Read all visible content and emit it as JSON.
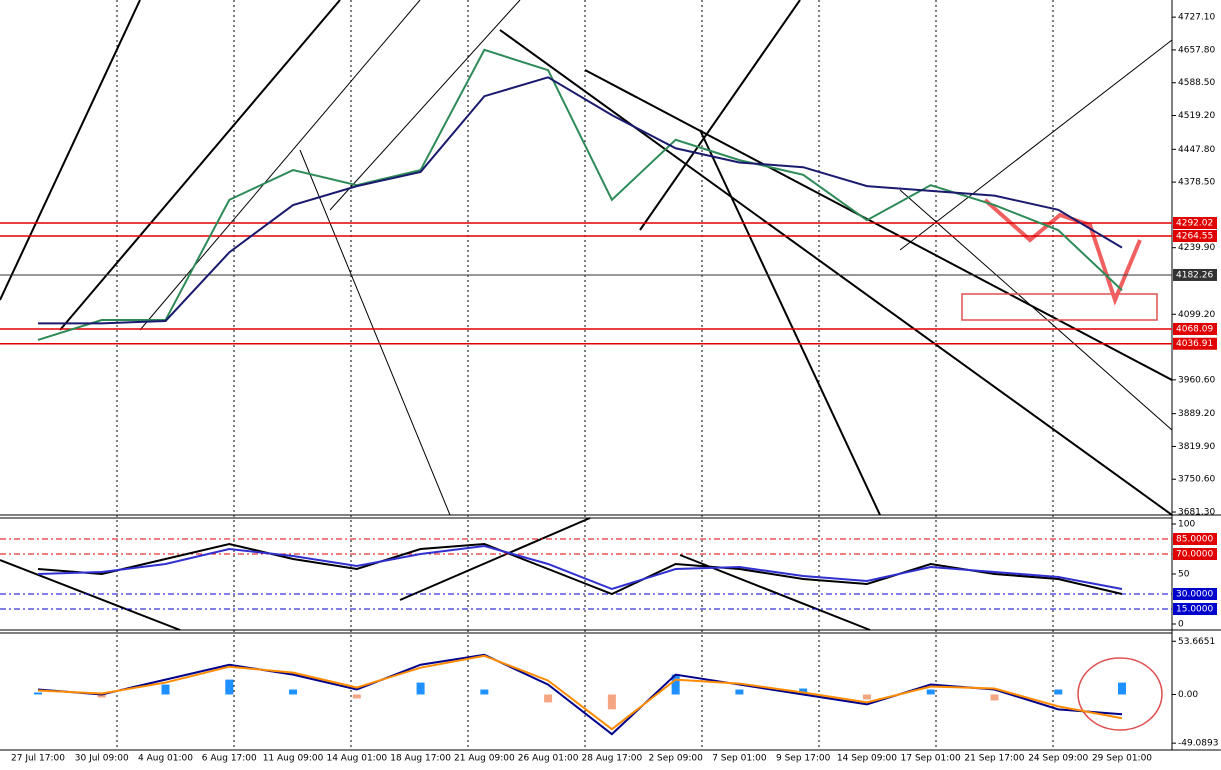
{
  "chart_data": [
    {
      "type": "line",
      "categories": [
        "27 Jul 17:00",
        "30 Jul 09:00",
        "4 Aug 01:00",
        "6 Aug 17:00",
        "11 Aug 09:00",
        "14 Aug 01:00",
        "18 Aug 17:00",
        "21 Aug 09:00",
        "26 Aug 01:00",
        "28 Aug 17:00",
        "2 Sep 09:00",
        "7 Sep 01:00",
        "9 Sep 17:00",
        "14 Sep 09:00",
        "17 Sep 01:00",
        "21 Sep 17:00",
        "24 Sep 09:00",
        "29 Sep 01:00"
      ],
      "series": [
        {
          "color": "#2e8b57",
          "values": [
            4045,
            4087,
            4087,
            4341,
            4404,
            4372,
            4404,
            4658,
            4615,
            4341,
            4468,
            4425,
            4394,
            4298,
            4372,
            4330,
            4277,
            4150
          ]
        },
        {
          "color": "#1a1a6e",
          "values": [
            4080,
            4080,
            4085,
            4230,
            4330,
            4370,
            4400,
            4560,
            4600,
            4520,
            4450,
            4420,
            4410,
            4370,
            4360,
            4350,
            4320,
            4240
          ]
        }
      ],
      "ylim": [
        3675,
        4757
      ],
      "yticks": [
        {
          "value": 4727.1,
          "label": "4727.10"
        },
        {
          "value": 4657.8,
          "label": "4657.80"
        },
        {
          "value": 4588.5,
          "label": "4588.50"
        },
        {
          "value": 4519.2,
          "label": "4519.20"
        },
        {
          "value": 4447.8,
          "label": "4447.80"
        },
        {
          "value": 4378.5,
          "label": "4378.50"
        },
        {
          "value": 4239.9,
          "label": "4239.90"
        },
        {
          "value": 4099.2,
          "label": "4099.20"
        },
        {
          "value": 3960.6,
          "label": "3960.60"
        },
        {
          "value": 3889.2,
          "label": "3889.20"
        },
        {
          "value": 3819.9,
          "label": "3819.90"
        },
        {
          "value": 3750.6,
          "label": "3750.60"
        },
        {
          "value": 3681.3,
          "label": "3681.30"
        }
      ],
      "levels": [
        {
          "value": 4292.02,
          "label": "4292.02",
          "color": "#e00000"
        },
        {
          "value": 4264.55,
          "label": "4264.55",
          "color": "#e00000"
        },
        {
          "value": 4182.26,
          "label": "4182.26",
          "color": "#333333"
        },
        {
          "value": 4068.09,
          "label": "4068.09",
          "color": "#e00000"
        },
        {
          "value": 4036.91,
          "label": "4036.91",
          "color": "#e00000"
        }
      ]
    },
    {
      "type": "line",
      "series": [
        {
          "color": "#000000",
          "values": [
            55,
            50,
            65,
            80,
            65,
            55,
            75,
            80,
            55,
            30,
            60,
            55,
            45,
            40,
            60,
            50,
            45,
            30
          ]
        },
        {
          "color": "#3030d0",
          "values": [
            50,
            52,
            60,
            75,
            68,
            58,
            70,
            78,
            60,
            35,
            55,
            57,
            48,
            43,
            57,
            52,
            47,
            35
          ]
        }
      ],
      "ylim": [
        -6,
        106
      ],
      "yticks": [
        100,
        50,
        0
      ],
      "levels": [
        {
          "value": 85,
          "label": "85.0000",
          "color": "#e00000"
        },
        {
          "value": 70,
          "label": "70.0000",
          "color": "#e00000"
        },
        {
          "value": 30,
          "label": "30.0000",
          "color": "#0000cc"
        },
        {
          "value": 15,
          "label": "15.0000",
          "color": "#0000cc"
        }
      ]
    },
    {
      "type": "macd",
      "histogram": {
        "color": "#1e90ff",
        "negative_color": "#f4a582",
        "values": [
          2,
          -3,
          10,
          15,
          5,
          -4,
          12,
          5,
          -8,
          -15,
          20,
          5,
          6,
          -5,
          5,
          -6,
          5,
          12
        ]
      },
      "series": [
        {
          "color": "#00008b",
          "values": [
            5,
            0,
            15,
            30,
            20,
            5,
            30,
            40,
            10,
            -40,
            20,
            10,
            0,
            -10,
            10,
            5,
            -15,
            -20
          ]
        },
        {
          "color": "#ff8c00",
          "values": [
            4,
            1,
            12,
            28,
            22,
            7,
            27,
            39,
            14,
            -35,
            15,
            11,
            2,
            -8,
            8,
            6,
            -12,
            -24
          ]
        }
      ],
      "ylim": [
        -56,
        62
      ],
      "yticks": [
        53.6651,
        {
          "value": 0,
          "label": "0.00"
        },
        -49.0893
      ]
    }
  ]
}
